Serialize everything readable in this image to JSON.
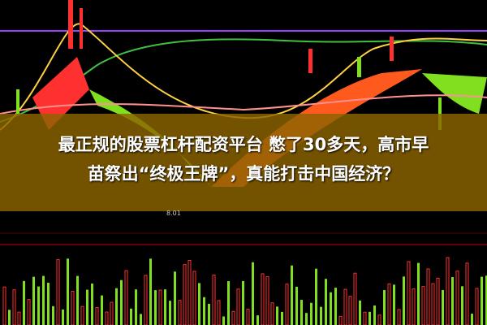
{
  "headline": {
    "line1": "最正规的股票杠杆配资平台 憋了30多天，高市早",
    "line2": "苗祭出“终极王牌”，真能打击中国经济？"
  },
  "chart_labels": {
    "low_marker": "8.01"
  },
  "colors": {
    "band": "#8c6400",
    "up": "#ff3030",
    "down": "#7fe040",
    "ribbon_red": "#ff5a1e",
    "ribbon_green": "#80e020",
    "ma_purple": "#a040ff",
    "ma_yellow": "#ffd040"
  }
}
